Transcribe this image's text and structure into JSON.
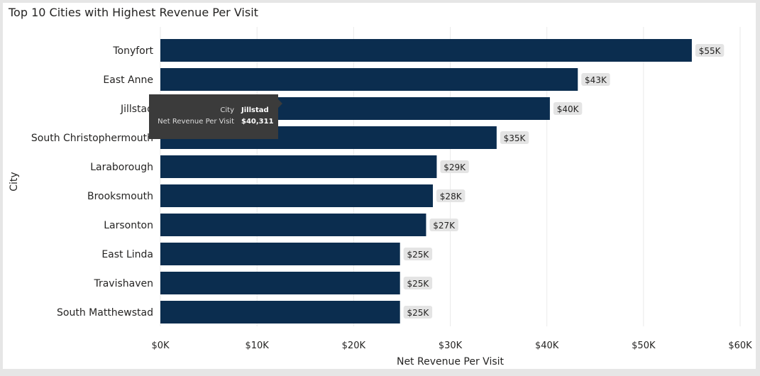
{
  "chart_data": {
    "type": "bar",
    "orientation": "horizontal",
    "title": "Top 10 Cities with Highest Revenue Per Visit",
    "xlabel": "Net Revenue Per Visit",
    "ylabel": "City",
    "xlim": [
      0,
      60000
    ],
    "x_ticks": [
      "$0K",
      "$10K",
      "$20K",
      "$30K",
      "$40K",
      "$50K",
      "$60K"
    ],
    "categories": [
      "Tonyfort",
      "East Anne",
      "Jillstad",
      "South Christophermouth",
      "Laraborough",
      "Brooksmouth",
      "Larsonton",
      "East Linda",
      "Travishaven",
      "South Matthewstad"
    ],
    "values": [
      55000,
      43200,
      40311,
      34800,
      28600,
      28200,
      27500,
      24800,
      24800,
      24800
    ],
    "data_labels": [
      "$55K",
      "$43K",
      "$40K",
      "$35K",
      "$29K",
      "$28K",
      "$27K",
      "$25K",
      "$25K",
      "$25K"
    ],
    "bar_color": "#0b2d4f",
    "grid": true
  },
  "tooltip": {
    "key1": "City",
    "val1": "Jillstad",
    "key2": "Net Revenue Per Visit",
    "val2": "$40,311"
  }
}
